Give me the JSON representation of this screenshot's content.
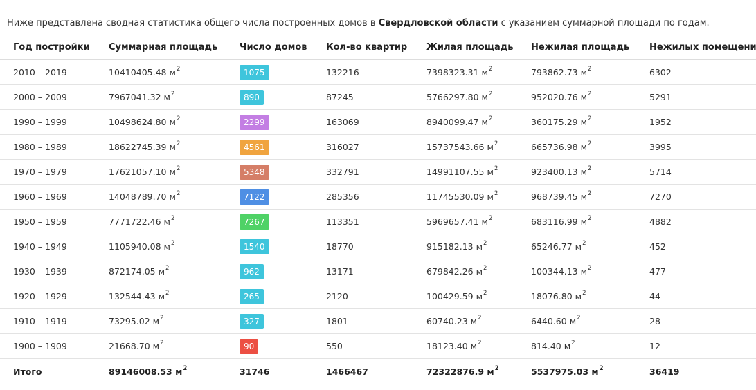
{
  "intro": {
    "prefix": "Ниже представлена сводная статистика общего числа построенных домов в ",
    "region": "Свердловской области",
    "suffix": " с указанием суммарной площади по годам."
  },
  "table": {
    "headers": [
      "Год постройки",
      "Суммарная площадь",
      "Число домов",
      "Кол-во квартир",
      "Жилая площадь",
      "Нежилая площадь",
      "Нежилых помещений"
    ],
    "unit": "м",
    "unit_power": "2",
    "rows": [
      {
        "period": "2010 – 2019",
        "total_area": "10410405.48",
        "houses": "1075",
        "houses_color": "#3ec5dc",
        "apartments": "132216",
        "living_area": "7398323.31",
        "nonliving_area": "793862.73",
        "nonliving_rooms": "6302"
      },
      {
        "period": "2000 – 2009",
        "total_area": "7967041.32",
        "houses": "890",
        "houses_color": "#3ec5dc",
        "apartments": "87245",
        "living_area": "5766297.80",
        "nonliving_area": "952020.76",
        "nonliving_rooms": "5291"
      },
      {
        "period": "1990 – 1999",
        "total_area": "10498624.80",
        "houses": "2299",
        "houses_color": "#c37ee3",
        "apartments": "163069",
        "living_area": "8940099.47",
        "nonliving_area": "360175.29",
        "nonliving_rooms": "1952"
      },
      {
        "period": "1980 – 1989",
        "total_area": "18622745.39",
        "houses": "4561",
        "houses_color": "#f0a43f",
        "apartments": "316027",
        "living_area": "15737543.66",
        "nonliving_area": "665736.98",
        "nonliving_rooms": "3995"
      },
      {
        "period": "1970 – 1979",
        "total_area": "17621057.10",
        "houses": "5348",
        "houses_color": "#d57e67",
        "apartments": "332791",
        "living_area": "14991107.55",
        "nonliving_area": "923400.13",
        "nonliving_rooms": "5714"
      },
      {
        "period": "1960 – 1969",
        "total_area": "14048789.70",
        "houses": "7122",
        "houses_color": "#4f8fe4",
        "apartments": "285356",
        "living_area": "11745530.09",
        "nonliving_area": "968739.45",
        "nonliving_rooms": "7270"
      },
      {
        "period": "1950 – 1959",
        "total_area": "7771722.46",
        "houses": "7267",
        "houses_color": "#4fd266",
        "apartments": "113351",
        "living_area": "5969657.41",
        "nonliving_area": "683116.99",
        "nonliving_rooms": "4882"
      },
      {
        "period": "1940 – 1949",
        "total_area": "1105940.08",
        "houses": "1540",
        "houses_color": "#3ec5dc",
        "apartments": "18770",
        "living_area": "915182.13",
        "nonliving_area": "65246.77",
        "nonliving_rooms": "452"
      },
      {
        "period": "1930 – 1939",
        "total_area": "872174.05",
        "houses": "962",
        "houses_color": "#3ec5dc",
        "apartments": "13171",
        "living_area": "679842.26",
        "nonliving_area": "100344.13",
        "nonliving_rooms": "477"
      },
      {
        "period": "1920 – 1929",
        "total_area": "132544.43",
        "houses": "265",
        "houses_color": "#3ec5dc",
        "apartments": "2120",
        "living_area": "100429.59",
        "nonliving_area": "18076.80",
        "nonliving_rooms": "44"
      },
      {
        "period": "1910 – 1919",
        "total_area": "73295.02",
        "houses": "327",
        "houses_color": "#3ec5dc",
        "apartments": "1801",
        "living_area": "60740.23",
        "nonliving_area": "6440.60",
        "nonliving_rooms": "28"
      },
      {
        "period": "1900 – 1909",
        "total_area": "21668.70",
        "houses": "90",
        "houses_color": "#ec4f43",
        "apartments": "550",
        "living_area": "18123.40",
        "nonliving_area": "814.40",
        "nonliving_rooms": "12"
      }
    ],
    "total": {
      "label": "Итого",
      "total_area": "89146008.53",
      "houses": "31746",
      "apartments": "1466467",
      "living_area": "72322876.9",
      "nonliving_area": "5537975.03",
      "nonliving_rooms": "36419"
    }
  }
}
